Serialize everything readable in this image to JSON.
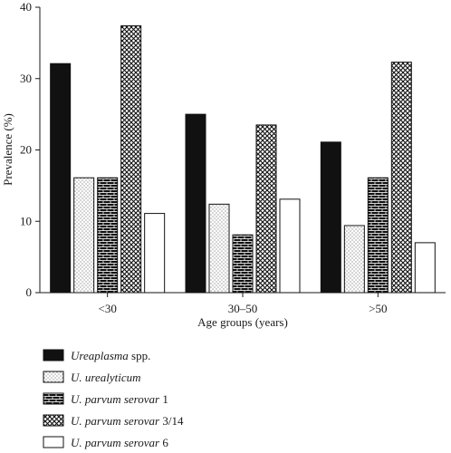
{
  "chart_data": {
    "type": "bar",
    "ylabel": "Prevalence (%)",
    "xlabel": "Age groups (years)",
    "ylim": [
      0,
      40
    ],
    "yticks": [
      0,
      10,
      20,
      30,
      40
    ],
    "grid": false,
    "legend_position": "bottom",
    "categories": [
      "<30",
      "30–50",
      ">50"
    ],
    "series": [
      {
        "name": "Ureaplasma",
        "name_suffix": " spp.",
        "pattern": "solid",
        "values": [
          32.1,
          25.0,
          21.1
        ]
      },
      {
        "name": "U. urealyticum",
        "name_suffix": "",
        "pattern": "dots",
        "values": [
          16.1,
          12.4,
          9.4
        ]
      },
      {
        "name": "U. parvum serovar",
        "name_suffix": " 1",
        "pattern": "brick",
        "values": [
          16.1,
          8.1,
          16.1
        ]
      },
      {
        "name": "U. parvum serovar",
        "name_suffix": " 3/14",
        "pattern": "crosshatch",
        "values": [
          37.4,
          23.5,
          32.3
        ]
      },
      {
        "name": "U. parvum serovar",
        "name_suffix": " 6",
        "pattern": "empty",
        "values": [
          11.1,
          13.1,
          7.0
        ]
      }
    ]
  }
}
